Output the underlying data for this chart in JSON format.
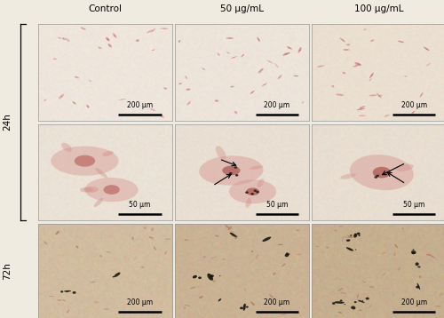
{
  "col_labels": [
    "Control",
    "50 µg/mL",
    "100 µg/mL"
  ],
  "scale_bars": {
    "r0": "200 µm",
    "r1": "50 µm",
    "r2": "200 µm"
  },
  "panel_bg_rgb": {
    "r0c0": [
      0.935,
      0.9,
      0.862
    ],
    "r0c1": [
      0.93,
      0.895,
      0.855
    ],
    "r0c2": [
      0.92,
      0.875,
      0.82
    ],
    "r1c0": [
      0.92,
      0.885,
      0.84
    ],
    "r1c1": [
      0.915,
      0.875,
      0.828
    ],
    "r1c2": [
      0.912,
      0.87,
      0.82
    ],
    "r2c0": [
      0.82,
      0.738,
      0.625
    ],
    "r2c1": [
      0.79,
      0.7,
      0.58
    ],
    "r2c2": [
      0.775,
      0.685,
      0.56
    ]
  },
  "label_fontsize": 7.5,
  "scale_fontsize": 5.5,
  "figure_bg": [
    0.94,
    0.92,
    0.88
  ]
}
